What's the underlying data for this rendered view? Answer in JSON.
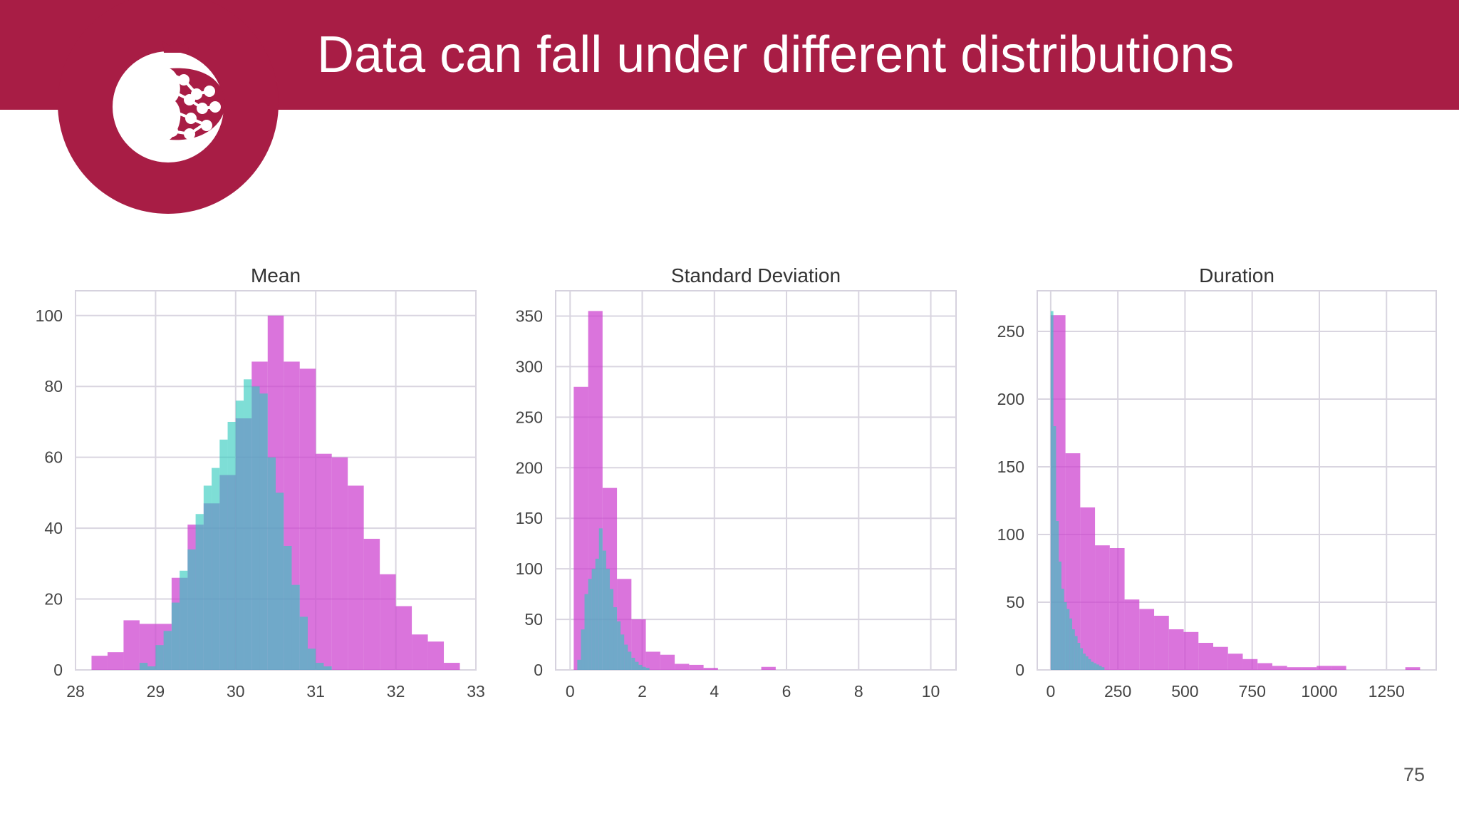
{
  "slide": {
    "title": "Data can fall under different distributions",
    "page_number": "75",
    "banner_color": "#a81d45",
    "logo_icon": "pomegranate-network-icon"
  },
  "chart_data": [
    {
      "type": "bar",
      "title": "Mean",
      "xlabel": "",
      "ylabel": "",
      "xlim": [
        28,
        33
      ],
      "ylim": [
        0,
        107
      ],
      "xticks": [
        28,
        29,
        30,
        31,
        32,
        33
      ],
      "yticks": [
        0,
        20,
        40,
        60,
        80,
        100
      ],
      "grid": true,
      "legend": "none",
      "series": [
        {
          "color": "#cc3fcf",
          "bin_edges": [
            28.2,
            28.4,
            28.6,
            28.8,
            29.0,
            29.2,
            29.4,
            29.6,
            29.8,
            30.0,
            30.2,
            30.4,
            30.6,
            30.8,
            31.0,
            31.2,
            31.4,
            31.6,
            31.8,
            32.0,
            32.2,
            32.4,
            32.6,
            32.8,
            33.0
          ],
          "counts": [
            4,
            5,
            14,
            13,
            13,
            26,
            41,
            47,
            55,
            71,
            87,
            100,
            87,
            85,
            61,
            60,
            52,
            37,
            27,
            18,
            10,
            8,
            2,
            0
          ]
        },
        {
          "color": "#2fc9bd",
          "bin_edges": [
            28.8,
            28.9,
            29.0,
            29.1,
            29.2,
            29.3,
            29.4,
            29.5,
            29.6,
            29.7,
            29.8,
            29.9,
            30.0,
            30.1,
            30.2,
            30.3,
            30.4,
            30.5,
            30.6,
            30.7,
            30.8,
            30.9,
            31.0,
            31.1,
            31.2
          ],
          "counts": [
            2,
            1,
            7,
            11,
            19,
            28,
            34,
            44,
            52,
            57,
            65,
            70,
            76,
            82,
            80,
            78,
            60,
            50,
            35,
            24,
            15,
            6,
            2,
            1
          ]
        }
      ]
    },
    {
      "type": "bar",
      "title": "Standard Deviation",
      "xlabel": "",
      "ylabel": "",
      "xlim": [
        -0.4,
        10.7
      ],
      "ylim": [
        0,
        375
      ],
      "xticks": [
        0,
        2,
        4,
        6,
        8,
        10
      ],
      "yticks": [
        0,
        50,
        100,
        150,
        200,
        250,
        300,
        350
      ],
      "grid": true,
      "legend": "none",
      "series": [
        {
          "color": "#cc3fcf",
          "bin_edges": [
            0.1,
            0.5,
            0.9,
            1.3,
            1.7,
            2.1,
            2.5,
            2.9,
            3.3,
            3.7,
            4.1,
            4.5,
            4.9,
            5.3,
            5.7,
            6.1,
            6.5,
            6.9,
            7.3,
            7.7,
            8.1,
            8.5,
            8.9,
            9.3,
            9.7,
            10.1
          ],
          "counts": [
            280,
            355,
            180,
            90,
            50,
            18,
            15,
            6,
            5,
            2,
            0,
            0,
            0,
            3,
            0,
            0,
            0,
            0,
            0,
            0,
            0,
            0,
            0,
            0,
            0,
            3
          ]
        },
        {
          "color": "#2fc9bd",
          "bin_edges": [
            0.2,
            0.3,
            0.4,
            0.5,
            0.6,
            0.7,
            0.8,
            0.9,
            1.0,
            1.1,
            1.2,
            1.3,
            1.4,
            1.5,
            1.6,
            1.7,
            1.8,
            1.9,
            2.0,
            2.1,
            2.2
          ],
          "counts": [
            10,
            40,
            75,
            90,
            100,
            110,
            140,
            118,
            100,
            80,
            62,
            48,
            35,
            25,
            18,
            12,
            8,
            5,
            3,
            2
          ]
        }
      ]
    },
    {
      "type": "bar",
      "title": "Duration",
      "xlabel": "",
      "ylabel": "",
      "xlim": [
        -50,
        1435
      ],
      "ylim": [
        0,
        280
      ],
      "xticks": [
        0,
        250,
        500,
        750,
        1000,
        1250
      ],
      "yticks": [
        0,
        50,
        100,
        150,
        200,
        250
      ],
      "grid": true,
      "legend": "none",
      "series": [
        {
          "color": "#cc3fcf",
          "bin_edges": [
            0,
            55,
            110,
            165,
            220,
            275,
            330,
            385,
            440,
            495,
            550,
            605,
            660,
            715,
            770,
            825,
            880,
            935,
            990,
            1045,
            1100,
            1155,
            1210,
            1265,
            1320,
            1375
          ],
          "counts": [
            262,
            160,
            120,
            92,
            90,
            52,
            45,
            40,
            30,
            28,
            20,
            17,
            12,
            8,
            5,
            3,
            2,
            2,
            3,
            3,
            0,
            0,
            0,
            0,
            2
          ]
        },
        {
          "color": "#2fc9bd",
          "bin_edges": [
            0,
            10,
            20,
            30,
            40,
            50,
            60,
            70,
            80,
            90,
            100,
            110,
            120,
            130,
            140,
            150,
            160,
            170,
            180,
            190,
            200
          ],
          "counts": [
            265,
            180,
            110,
            80,
            60,
            50,
            45,
            38,
            30,
            25,
            20,
            16,
            12,
            10,
            8,
            6,
            5,
            4,
            3,
            2
          ]
        }
      ]
    }
  ]
}
